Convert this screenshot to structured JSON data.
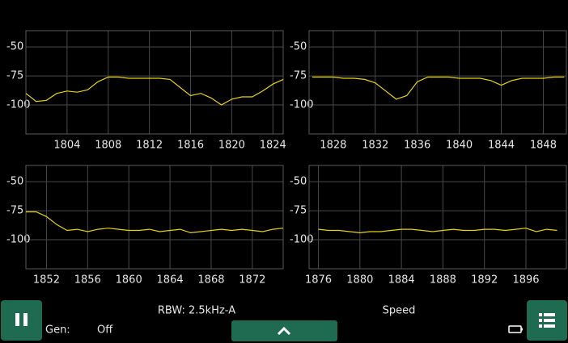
{
  "chart_data": [
    {
      "type": "line",
      "xlim": [
        1800,
        1825
      ],
      "ylim": [
        -125,
        -36
      ],
      "xticks": [
        1804,
        1808,
        1812,
        1816,
        1820,
        1824
      ],
      "yticks": [
        -50,
        -75,
        -100
      ],
      "grid": true,
      "color": "#e8d21a",
      "x": [
        1800,
        1801,
        1802,
        1803,
        1804,
        1805,
        1806,
        1807,
        1808,
        1809,
        1810,
        1811,
        1812,
        1813,
        1814,
        1815,
        1816,
        1817,
        1818,
        1819,
        1820,
        1821,
        1822,
        1823,
        1824,
        1825
      ],
      "values": [
        -90,
        -97,
        -96,
        -90,
        -88,
        -89,
        -87,
        -80,
        -76,
        -76,
        -77,
        -77,
        -77,
        -77,
        -78,
        -85,
        -92,
        -90,
        -94,
        -100,
        -95,
        -93,
        -93,
        -88,
        -82,
        -78
      ]
    },
    {
      "type": "line",
      "xlim": [
        1825.7,
        1850.2
      ],
      "ylim": [
        -125,
        -36
      ],
      "xticks": [
        1828,
        1832,
        1836,
        1840,
        1844,
        1848
      ],
      "yticks": [
        -50,
        -75,
        -100
      ],
      "grid": true,
      "color": "#e8d21a",
      "x": [
        1826,
        1827,
        1828,
        1829,
        1830,
        1831,
        1832,
        1833,
        1834,
        1835,
        1836,
        1837,
        1838,
        1839,
        1840,
        1841,
        1842,
        1843,
        1844,
        1845,
        1846,
        1847,
        1848,
        1849,
        1850
      ],
      "values": [
        -76,
        -76,
        -76,
        -77,
        -77,
        -78,
        -81,
        -88,
        -95,
        -92,
        -80,
        -76,
        -76,
        -76,
        -77,
        -77,
        -77,
        -79,
        -83,
        -79,
        -77,
        -77,
        -77,
        -76,
        -76
      ]
    },
    {
      "type": "line",
      "xlim": [
        1850,
        1875
      ],
      "ylim": [
        -125,
        -36
      ],
      "xticks": [
        1852,
        1856,
        1860,
        1864,
        1868,
        1872
      ],
      "yticks": [
        -50,
        -75,
        -100
      ],
      "grid": true,
      "color": "#e8d21a",
      "x": [
        1850,
        1851,
        1852,
        1853,
        1854,
        1855,
        1856,
        1857,
        1858,
        1859,
        1860,
        1861,
        1862,
        1863,
        1864,
        1865,
        1866,
        1867,
        1868,
        1869,
        1870,
        1871,
        1872,
        1873,
        1874,
        1875
      ],
      "values": [
        -76,
        -76,
        -80,
        -87,
        -92,
        -91,
        -93,
        -91,
        -90,
        -91,
        -92,
        -92,
        -91,
        -93,
        -92,
        -91,
        -94,
        -93,
        -92,
        -91,
        -92,
        -91,
        -92,
        -93,
        -91,
        -90
      ]
    },
    {
      "type": "line",
      "xlim": [
        1875.1,
        1899.9
      ],
      "ylim": [
        -125,
        -36
      ],
      "xticks": [
        1876,
        1880,
        1884,
        1888,
        1892,
        1896
      ],
      "yticks": [
        -50,
        -75,
        -100
      ],
      "grid": true,
      "color": "#e8d21a",
      "x": [
        1876,
        1877,
        1878,
        1879,
        1880,
        1881,
        1882,
        1883,
        1884,
        1885,
        1886,
        1887,
        1888,
        1889,
        1890,
        1891,
        1892,
        1893,
        1894,
        1895,
        1896,
        1897,
        1898,
        1899
      ],
      "values": [
        -91,
        -92,
        -92,
        -93,
        -94,
        -93,
        -93,
        -92,
        -91,
        -91,
        -92,
        -93,
        -92,
        -91,
        -92,
        -92,
        -91,
        -91,
        -92,
        -91,
        -90,
        -93,
        -91,
        -92
      ]
    }
  ],
  "footer": {
    "rbw": "RBW: 2.5kHz-A",
    "speed": "Speed",
    "gen_label": "Gen:",
    "gen_value": "Off"
  }
}
